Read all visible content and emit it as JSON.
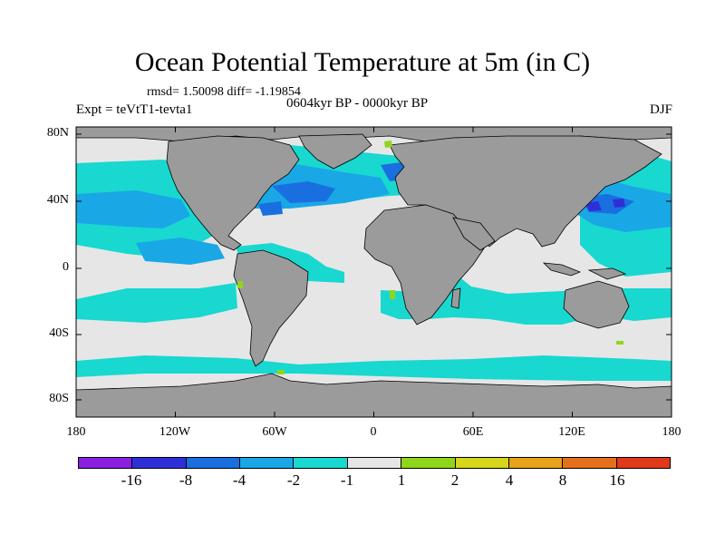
{
  "title": "Ocean Potential Temperature at 5m (in C)",
  "stats_line": "rmsd= 1.50098 diff= -1.19854",
  "period": "0604kyr BP - 0000kyr BP",
  "experiment": "Expt = teVtT1-tevta1",
  "season": "DJF",
  "axes": {
    "y_ticks": [
      "80N",
      "40N",
      "0",
      "40S",
      "80S"
    ],
    "x_ticks": [
      "180",
      "120W",
      "60W",
      "0",
      "60E",
      "120E",
      "180"
    ]
  },
  "colorbar": {
    "colors": [
      "#8a1fe0",
      "#2f2fd8",
      "#1a6fe0",
      "#1aa7e6",
      "#18d8d0",
      "#e6e6e6",
      "#8fd61a",
      "#d6d61a",
      "#e6a21a",
      "#e6701a",
      "#e03a1a"
    ],
    "labels": [
      "-16",
      "-8",
      "-4",
      "-2",
      "-1",
      "1",
      "2",
      "4",
      "8",
      "16"
    ]
  },
  "map_colors": {
    "land": "#9b9b9b",
    "near_zero": "#e6e6e6",
    "cool_light": "#18d8d0",
    "cool_mid": "#1aa7e6",
    "cool_strong": "#1a6fe0",
    "cool_max": "#2f2fd8",
    "warm_light": "#8fd61a"
  }
}
